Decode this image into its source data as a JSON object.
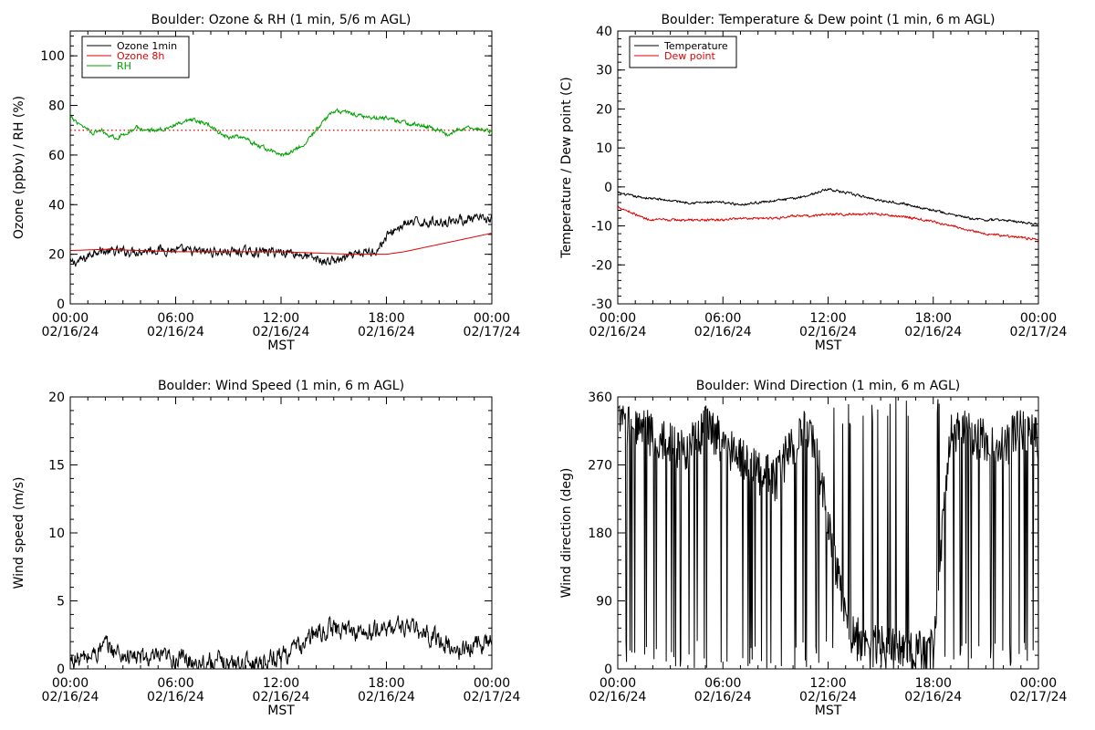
{
  "x_axis": {
    "tick_times": [
      "00:00",
      "06:00",
      "12:00",
      "18:00",
      "00:00"
    ],
    "tick_dates": [
      "02/16/24",
      "02/16/24",
      "02/16/24",
      "02/16/24",
      "02/17/24"
    ],
    "label": "MST"
  },
  "colors": {
    "black": "#000000",
    "red": "#e00000",
    "green": "#00a000"
  },
  "chart_data": [
    {
      "id": "ozone-rh",
      "type": "line",
      "title": "Boulder: Ozone & RH (1 min, 5/6 m AGL)",
      "xlabel": "MST",
      "ylabel": "Ozone (ppbv) / RH (%)",
      "xlim": [
        "02/16/24 00:00",
        "02/17/24 00:00"
      ],
      "ylim": [
        0,
        110
      ],
      "yticks": [
        0,
        20,
        40,
        60,
        80,
        100
      ],
      "legend": "top-left",
      "reference_line": {
        "y": 70,
        "style": "dotted",
        "color": "red"
      },
      "series": [
        {
          "name": "Ozone 1min",
          "color": "black",
          "noise": 1.6,
          "points": [
            [
              0,
              16
            ],
            [
              0.8,
              18
            ],
            [
              1.5,
              22
            ],
            [
              2,
              21
            ],
            [
              3,
              21
            ],
            [
              5,
              22
            ],
            [
              7,
              21
            ],
            [
              9,
              21
            ],
            [
              11,
              21
            ],
            [
              12.5,
              21
            ],
            [
              13.5,
              19
            ],
            [
              14.5,
              17
            ],
            [
              15.5,
              18
            ],
            [
              16.5,
              20
            ],
            [
              17.5,
              22
            ],
            [
              18,
              27
            ],
            [
              18.5,
              30
            ],
            [
              19,
              32
            ],
            [
              20,
              33
            ],
            [
              21,
              33
            ],
            [
              22,
              34
            ],
            [
              23,
              34
            ],
            [
              24,
              34
            ]
          ]
        },
        {
          "name": "Ozone 8h",
          "color": "red",
          "noise": 0,
          "points": [
            [
              0,
              21.5
            ],
            [
              2,
              22
            ],
            [
              4,
              21.5
            ],
            [
              6,
              21
            ],
            [
              9,
              21
            ],
            [
              12,
              21
            ],
            [
              14,
              20.5
            ],
            [
              16,
              20
            ],
            [
              18,
              20
            ],
            [
              19,
              21
            ],
            [
              20,
              22.5
            ],
            [
              21,
              24
            ],
            [
              22,
              25.5
            ],
            [
              23,
              27
            ],
            [
              24,
              28.5
            ]
          ]
        },
        {
          "name": "RH",
          "color": "green",
          "noise": 0.7,
          "points": [
            [
              0,
              75
            ],
            [
              0.7,
              72
            ],
            [
              1.3,
              69
            ],
            [
              1.8,
              70
            ],
            [
              2.2,
              68
            ],
            [
              2.7,
              67
            ],
            [
              3.2,
              69
            ],
            [
              3.8,
              71
            ],
            [
              4.3,
              70
            ],
            [
              5,
              70
            ],
            [
              6,
              72
            ],
            [
              7,
              74
            ],
            [
              8,
              72
            ],
            [
              8.5,
              69
            ],
            [
              9,
              67
            ],
            [
              9.5,
              68
            ],
            [
              10,
              66
            ],
            [
              11,
              63
            ],
            [
              12,
              60
            ],
            [
              12.5,
              61
            ],
            [
              13,
              63
            ],
            [
              13.5,
              66
            ],
            [
              14,
              70
            ],
            [
              14.5,
              74
            ],
            [
              15,
              78
            ],
            [
              16,
              77
            ],
            [
              17,
              75
            ],
            [
              18,
              75
            ],
            [
              19,
              73
            ],
            [
              20,
              72
            ],
            [
              21,
              70
            ],
            [
              21.5,
              68
            ],
            [
              22,
              70
            ],
            [
              23,
              71
            ],
            [
              24,
              69
            ]
          ]
        }
      ]
    },
    {
      "id": "temp-dew",
      "type": "line",
      "title": "Boulder: Temperature & Dew point (1 min, 6 m AGL)",
      "xlabel": "MST",
      "ylabel": "Temperature / Dew point (C)",
      "xlim": [
        "02/16/24 00:00",
        "02/17/24 00:00"
      ],
      "ylim": [
        -30,
        40
      ],
      "yticks": [
        -30,
        -20,
        -10,
        0,
        10,
        20,
        30,
        40
      ],
      "legend": "top-left",
      "series": [
        {
          "name": "Temperature",
          "color": "black",
          "noise": 0.25,
          "points": [
            [
              0,
              -1.5
            ],
            [
              1,
              -2.5
            ],
            [
              2,
              -3
            ],
            [
              3,
              -3.5
            ],
            [
              4,
              -4
            ],
            [
              5,
              -4
            ],
            [
              6,
              -4
            ],
            [
              7,
              -4.5
            ],
            [
              8,
              -4
            ],
            [
              9,
              -3.5
            ],
            [
              10,
              -3
            ],
            [
              11,
              -2
            ],
            [
              12,
              -0.5
            ],
            [
              13,
              -1.5
            ],
            [
              14,
              -2.5
            ],
            [
              15,
              -3.5
            ],
            [
              16,
              -4
            ],
            [
              17,
              -5
            ],
            [
              18,
              -6
            ],
            [
              19,
              -7
            ],
            [
              20,
              -8
            ],
            [
              21,
              -8.5
            ],
            [
              22,
              -8.5
            ],
            [
              23,
              -9
            ],
            [
              24,
              -9.5
            ]
          ]
        },
        {
          "name": "Dew point",
          "color": "red",
          "noise": 0.25,
          "points": [
            [
              0,
              -5
            ],
            [
              1,
              -7
            ],
            [
              1.5,
              -8
            ],
            [
              2,
              -8.5
            ],
            [
              3,
              -8.5
            ],
            [
              4,
              -8.5
            ],
            [
              5,
              -8.5
            ],
            [
              6,
              -8.5
            ],
            [
              7,
              -8
            ],
            [
              8,
              -8
            ],
            [
              9,
              -8
            ],
            [
              10,
              -7.5
            ],
            [
              11,
              -7.5
            ],
            [
              12,
              -7
            ],
            [
              13,
              -7
            ],
            [
              14,
              -7
            ],
            [
              15,
              -7
            ],
            [
              16,
              -7.5
            ],
            [
              17,
              -8
            ],
            [
              18,
              -9
            ],
            [
              19,
              -10
            ],
            [
              20,
              -11
            ],
            [
              21,
              -12
            ],
            [
              22,
              -12.5
            ],
            [
              23,
              -13
            ],
            [
              24,
              -13.5
            ]
          ]
        }
      ]
    },
    {
      "id": "wind-speed",
      "type": "line",
      "title": "Boulder: Wind Speed (1 min, 6 m AGL)",
      "xlabel": "MST",
      "ylabel": "Wind speed (m/s)",
      "xlim": [
        "02/16/24 00:00",
        "02/17/24 00:00"
      ],
      "ylim": [
        0,
        20
      ],
      "yticks": [
        0,
        5,
        10,
        15,
        20
      ],
      "series": [
        {
          "color": "black",
          "noise": 0.6,
          "floor": 0,
          "points": [
            [
              0,
              0.6
            ],
            [
              1,
              0.8
            ],
            [
              2,
              1.7
            ],
            [
              3,
              1.0
            ],
            [
              4,
              0.8
            ],
            [
              5,
              0.7
            ],
            [
              6,
              0.8
            ],
            [
              7,
              0.6
            ],
            [
              8,
              0.5
            ],
            [
              9,
              0.4
            ],
            [
              10,
              0.4
            ],
            [
              11,
              0.6
            ],
            [
              12,
              1.0
            ],
            [
              13,
              1.6
            ],
            [
              14,
              2.6
            ],
            [
              15,
              3.0
            ],
            [
              16,
              2.8
            ],
            [
              17,
              2.6
            ],
            [
              18,
              3.0
            ],
            [
              19,
              3.2
            ],
            [
              20,
              2.6
            ],
            [
              21,
              2.2
            ],
            [
              22,
              1.2
            ],
            [
              23,
              1.8
            ],
            [
              24,
              2.2
            ]
          ]
        }
      ]
    },
    {
      "id": "wind-direction",
      "type": "line",
      "title": "Boulder: Wind Direction (1 min, 6 m AGL)",
      "xlabel": "MST",
      "ylabel": "Wind direction (deg)",
      "xlim": [
        "02/16/24 00:00",
        "02/17/24 00:00"
      ],
      "ylim": [
        0,
        360
      ],
      "yticks": [
        0,
        90,
        180,
        270,
        360
      ],
      "series": [
        {
          "color": "black",
          "noise": 30,
          "wrap": true,
          "points": [
            [
              0,
              330
            ],
            [
              1,
              320
            ],
            [
              2,
              310
            ],
            [
              3,
              300
            ],
            [
              4,
              290
            ],
            [
              5,
              320
            ],
            [
              6,
              300
            ],
            [
              7,
              280
            ],
            [
              8,
              260
            ],
            [
              9,
              250
            ],
            [
              10,
              300
            ],
            [
              11,
              320
            ],
            [
              12,
              200
            ],
            [
              13,
              60
            ],
            [
              14,
              30
            ],
            [
              15,
              30
            ],
            [
              16,
              25
            ],
            [
              17,
              20
            ],
            [
              18,
              25
            ],
            [
              19,
              320
            ],
            [
              20,
              310
            ],
            [
              21,
              300
            ],
            [
              22,
              290
            ],
            [
              23,
              320
            ],
            [
              24,
              300
            ]
          ]
        }
      ]
    }
  ]
}
